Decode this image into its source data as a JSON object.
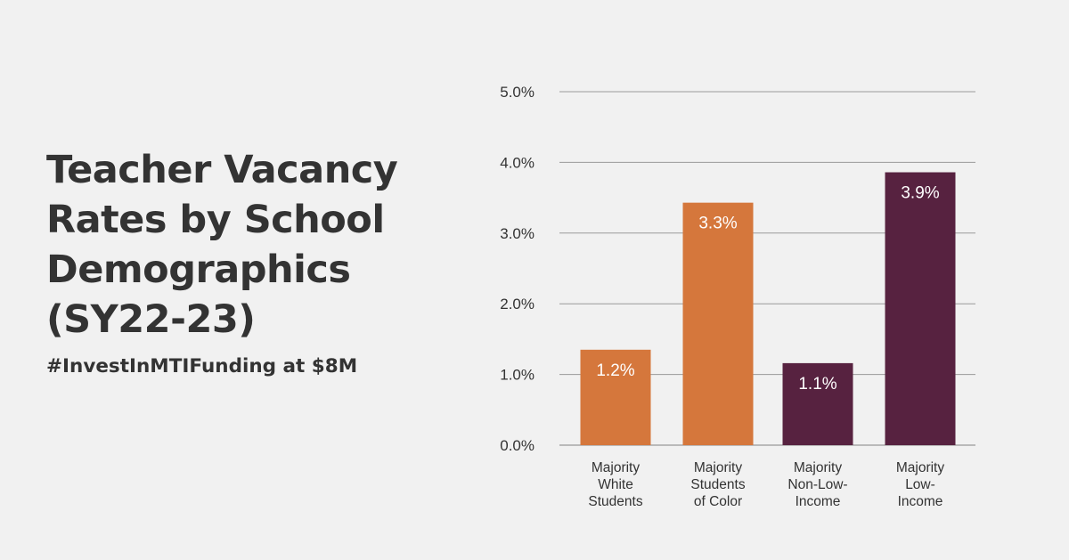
{
  "title_lines": [
    "Teacher Vacancy",
    "Rates by School",
    "Demographics",
    "(SY22-23)"
  ],
  "subtitle": "#InvestInMTIFunding at $8M",
  "colors": {
    "background": "#f1f1f1",
    "text": "#333333",
    "orange": "#d5773c",
    "purple": "#572240",
    "gridline": "#9a9a9a"
  },
  "chart_data": {
    "type": "bar",
    "categories": [
      [
        "Majority",
        "White",
        "Students"
      ],
      [
        "Majority",
        "Students",
        "of Color"
      ],
      [
        "Majority",
        "Non-Low-",
        "Income"
      ],
      [
        "Majority",
        "Low-",
        "Income"
      ]
    ],
    "values": [
      1.2,
      3.3,
      1.1,
      3.9
    ],
    "bar_values_read_from_axis": [
      1.35,
      3.43,
      1.16,
      3.86
    ],
    "data_labels": [
      "1.2%",
      "3.3%",
      "1.1%",
      "3.9%"
    ],
    "bar_colors": [
      "#d5773c",
      "#d5773c",
      "#572240",
      "#572240"
    ],
    "y_ticks": [
      0,
      1,
      2,
      3,
      4,
      5
    ],
    "y_tick_labels": [
      "0.0%",
      "1.0%",
      "2.0%",
      "3.0%",
      "4.0%",
      "5.0%"
    ],
    "ylim": [
      0,
      5
    ],
    "grid": true,
    "legend": false,
    "title": "",
    "xlabel": "",
    "ylabel": ""
  }
}
